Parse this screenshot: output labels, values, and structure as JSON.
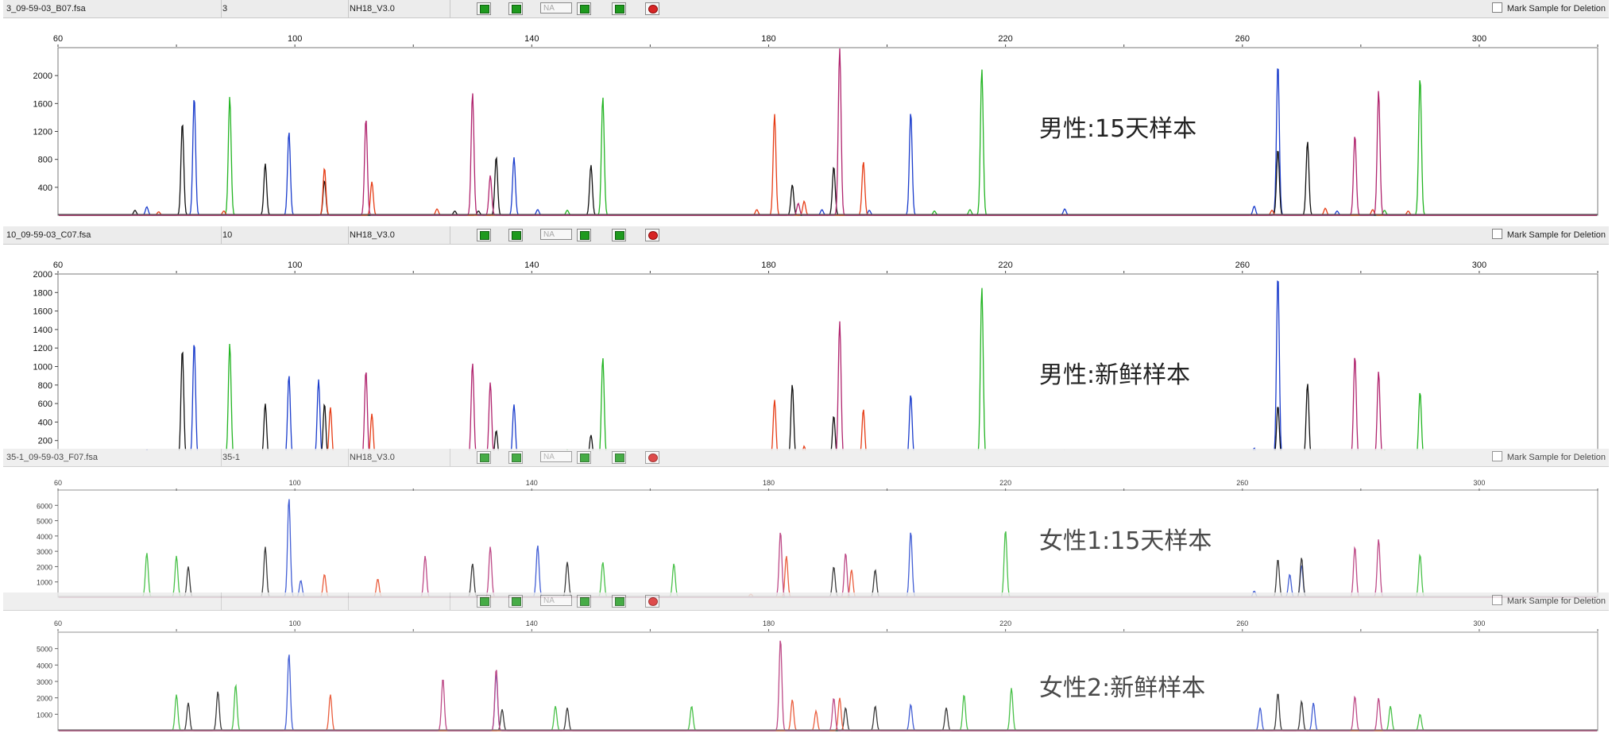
{
  "colors": {
    "blue": "#1a3ccc",
    "green": "#22b422",
    "black": "#111111",
    "red": "#e63b14",
    "purple": "#b0246e"
  },
  "panels": [
    {
      "file": "3_09-59-03_B07.fsa",
      "sample_no": "3",
      "panel": "NH18_V3.0",
      "na_label": "NA",
      "mark_label": "Mark Sample for Deletion",
      "annotation": "男性:15天样本"
    },
    {
      "file": "10_09-59-03_C07.fsa",
      "sample_no": "10",
      "panel": "NH18_V3.0",
      "na_label": "NA",
      "mark_label": "Mark Sample for Deletion",
      "annotation": "男性:新鲜样本"
    },
    {
      "file": "35-1_09-59-03_F07.fsa",
      "sample_no": "35-1",
      "panel": "NH18_V3.0",
      "na_label": "NA",
      "mark_label": "Mark Sample for Deletion",
      "annotation": "女性1:15天样本"
    },
    {
      "file": "",
      "sample_no": "",
      "panel": "",
      "na_label": "NA",
      "mark_label": "Mark Sample for Deletion",
      "annotation": "女性2:新鲜样本"
    }
  ],
  "chart_data": [
    {
      "type": "line",
      "x_range": [
        60,
        320
      ],
      "x_ticks": [
        60,
        100,
        140,
        180,
        220,
        260,
        300
      ],
      "y_range": [
        0,
        2400
      ],
      "y_ticks": [
        400,
        800,
        1200,
        1600,
        2000
      ],
      "series": [
        {
          "color": "blue",
          "peaks": [
            [
              75,
              120
            ],
            [
              83,
              1700
            ],
            [
              99,
              1200
            ],
            [
              137,
              830
            ],
            [
              141,
              80
            ],
            [
              189,
              80
            ],
            [
              197,
              70
            ],
            [
              204,
              1480
            ],
            [
              230,
              90
            ],
            [
              262,
              130
            ],
            [
              266,
              2180
            ],
            [
              276,
              60
            ]
          ]
        },
        {
          "color": "green",
          "peaks": [
            [
              89,
              1700
            ],
            [
              146,
              70
            ],
            [
              152,
              1700
            ],
            [
              208,
              60
            ],
            [
              214,
              80
            ],
            [
              216,
              2100
            ],
            [
              284,
              70
            ],
            [
              290,
              1980
            ]
          ]
        },
        {
          "color": "black",
          "peaks": [
            [
              73,
              70
            ],
            [
              81,
              1330
            ],
            [
              95,
              740
            ],
            [
              105,
              500
            ],
            [
              127,
              60
            ],
            [
              131,
              60
            ],
            [
              134,
              840
            ],
            [
              150,
              720
            ],
            [
              184,
              440
            ],
            [
              191,
              700
            ],
            [
              266,
              950
            ],
            [
              271,
              1060
            ]
          ]
        },
        {
          "color": "red",
          "peaks": [
            [
              77,
              50
            ],
            [
              88,
              60
            ],
            [
              105,
              680
            ],
            [
              113,
              480
            ],
            [
              124,
              90
            ],
            [
              178,
              80
            ],
            [
              181,
              1450
            ],
            [
              186,
              200
            ],
            [
              196,
              770
            ],
            [
              265,
              70
            ],
            [
              274,
              100
            ],
            [
              282,
              80
            ],
            [
              288,
              60
            ]
          ]
        },
        {
          "color": "purple",
          "peaks": [
            [
              112,
              1390
            ],
            [
              130,
              1760
            ],
            [
              133,
              570
            ],
            [
              185,
              170
            ],
            [
              192,
              2400
            ],
            [
              279,
              1150
            ],
            [
              283,
              1790
            ]
          ]
        }
      ]
    },
    {
      "type": "line",
      "x_range": [
        60,
        320
      ],
      "x_ticks": [
        60,
        100,
        140,
        180,
        220,
        260,
        300
      ],
      "y_range": [
        0,
        2000
      ],
      "y_ticks": [
        200,
        400,
        600,
        800,
        1000,
        1200,
        1400,
        1600,
        1800,
        2000
      ],
      "series": [
        {
          "color": "blue",
          "peaks": [
            [
              75,
              100
            ],
            [
              83,
              1270
            ],
            [
              99,
              910
            ],
            [
              104,
              860
            ],
            [
              137,
              590
            ],
            [
              141,
              50
            ],
            [
              189,
              50
            ],
            [
              197,
              60
            ],
            [
              204,
              700
            ],
            [
              230,
              90
            ],
            [
              262,
              120
            ],
            [
              266,
              2000
            ]
          ]
        },
        {
          "color": "green",
          "peaks": [
            [
              89,
              1250
            ],
            [
              146,
              100
            ],
            [
              152,
              1100
            ],
            [
              208,
              60
            ],
            [
              214,
              60
            ],
            [
              216,
              1860
            ],
            [
              284,
              100
            ],
            [
              290,
              730
            ]
          ]
        },
        {
          "color": "black",
          "peaks": [
            [
              72,
              60
            ],
            [
              78,
              70
            ],
            [
              81,
              1190
            ],
            [
              95,
              600
            ],
            [
              105,
              600
            ],
            [
              134,
              310
            ],
            [
              150,
              260
            ],
            [
              184,
              810
            ],
            [
              191,
              470
            ],
            [
              266,
              580
            ],
            [
              271,
              820
            ]
          ]
        },
        {
          "color": "red",
          "peaks": [
            [
              75,
              40
            ],
            [
              106,
              560
            ],
            [
              113,
              490
            ],
            [
              124,
              40
            ],
            [
              178,
              50
            ],
            [
              181,
              640
            ],
            [
              186,
              140
            ],
            [
              196,
              540
            ],
            [
              274,
              90
            ]
          ]
        },
        {
          "color": "purple",
          "peaks": [
            [
              112,
              960
            ],
            [
              130,
              1040
            ],
            [
              133,
              830
            ],
            [
              192,
              1490
            ],
            [
              279,
              1120
            ],
            [
              283,
              950
            ]
          ]
        }
      ]
    },
    {
      "type": "line",
      "x_range": [
        60,
        320
      ],
      "x_ticks": [
        60,
        100,
        140,
        180,
        220,
        260,
        300
      ],
      "y_range": [
        0,
        7000
      ],
      "y_ticks": [
        1000,
        2000,
        3000,
        4000,
        5000,
        6000
      ],
      "series": [
        {
          "color": "blue",
          "peaks": [
            [
              99,
              6500
            ],
            [
              101,
              1100
            ],
            [
              141,
              3400
            ],
            [
              204,
              4300
            ],
            [
              262,
              400
            ],
            [
              268,
              1500
            ],
            [
              270,
              2100
            ]
          ]
        },
        {
          "color": "green",
          "peaks": [
            [
              75,
              2900
            ],
            [
              80,
              2700
            ],
            [
              152,
              2300
            ],
            [
              164,
              2200
            ],
            [
              220,
              4400
            ],
            [
              290,
              2800
            ]
          ]
        },
        {
          "color": "black",
          "peaks": [
            [
              82,
              2000
            ],
            [
              95,
              3300
            ],
            [
              130,
              2200
            ],
            [
              146,
              2300
            ],
            [
              191,
              2000
            ],
            [
              198,
              1800
            ],
            [
              266,
              2500
            ],
            [
              270,
              2600
            ]
          ]
        },
        {
          "color": "red",
          "peaks": [
            [
              105,
              1500
            ],
            [
              114,
              1200
            ],
            [
              177,
              200
            ],
            [
              183,
              2700
            ],
            [
              194,
              1800
            ]
          ]
        },
        {
          "color": "purple",
          "peaks": [
            [
              122,
              2700
            ],
            [
              133,
              3300
            ],
            [
              182,
              4300
            ],
            [
              193,
              2900
            ],
            [
              279,
              3300
            ],
            [
              283,
              3800
            ]
          ]
        }
      ]
    },
    {
      "type": "line",
      "x_range": [
        60,
        320
      ],
      "x_ticks": [
        60,
        100,
        140,
        180,
        220,
        260,
        300
      ],
      "y_range": [
        0,
        6000
      ],
      "y_ticks": [
        1000,
        2000,
        3000,
        4000,
        5000
      ],
      "series": [
        {
          "color": "blue",
          "peaks": [
            [
              99,
              4700
            ],
            [
              134,
              3500
            ],
            [
              204,
              1600
            ],
            [
              263,
              1400
            ],
            [
              272,
              1700
            ]
          ]
        },
        {
          "color": "green",
          "peaks": [
            [
              80,
              2200
            ],
            [
              90,
              2800
            ],
            [
              144,
              1500
            ],
            [
              167,
              1500
            ],
            [
              213,
              2200
            ],
            [
              221,
              2600
            ],
            [
              285,
              1500
            ],
            [
              290,
              1000
            ]
          ]
        },
        {
          "color": "black",
          "peaks": [
            [
              82,
              1700
            ],
            [
              87,
              2400
            ],
            [
              135,
              1300
            ],
            [
              146,
              1400
            ],
            [
              193,
              1400
            ],
            [
              198,
              1500
            ],
            [
              210,
              1400
            ],
            [
              266,
              2300
            ],
            [
              270,
              1800
            ]
          ]
        },
        {
          "color": "red",
          "peaks": [
            [
              106,
              2200
            ],
            [
              184,
              1900
            ],
            [
              188,
              1200
            ],
            [
              192,
              2000
            ]
          ]
        },
        {
          "color": "purple",
          "peaks": [
            [
              125,
              3200
            ],
            [
              134,
              3800
            ],
            [
              182,
              5600
            ],
            [
              191,
              2000
            ],
            [
              279,
              2100
            ],
            [
              283,
              2000
            ]
          ]
        }
      ]
    }
  ]
}
